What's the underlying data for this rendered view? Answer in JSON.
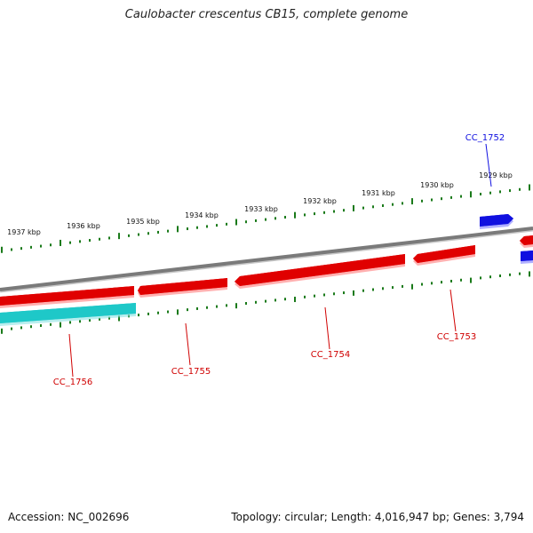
{
  "title": "Caulobacter crescentus CB15, complete genome",
  "footer": {
    "accession": "Accession: NC_002696",
    "summary": "Topology: circular; Length: 4,016,947 bp; Genes: 3,794"
  },
  "colors": {
    "backbone": "#7a7a7a",
    "tick": "#1a7a1a",
    "forward_gene": "#1010e0",
    "reverse_gene": "#e00000",
    "rna_gene": "#1ec8c8",
    "forward_label": "#1010e0",
    "reverse_label": "#d00000"
  },
  "scale_labels": [
    "1929 kbp",
    "1930 kbp",
    "1931 kbp",
    "1932 kbp",
    "1933 kbp",
    "1934 kbp",
    "1935 kbp",
    "1936 kbp",
    "1937 kbp"
  ],
  "genes": [
    {
      "id": "CC_1752",
      "strand": "forward",
      "type": "cds"
    },
    {
      "id": "CC_1753",
      "strand": "reverse",
      "type": "cds"
    },
    {
      "id": "CC_1754",
      "strand": "reverse",
      "type": "cds"
    },
    {
      "id": "CC_1755",
      "strand": "reverse",
      "type": "cds"
    },
    {
      "id": "CC_1756",
      "strand": "reverse",
      "type": "cds"
    },
    {
      "id": "rna-track",
      "strand": "reverse",
      "type": "rna"
    }
  ]
}
